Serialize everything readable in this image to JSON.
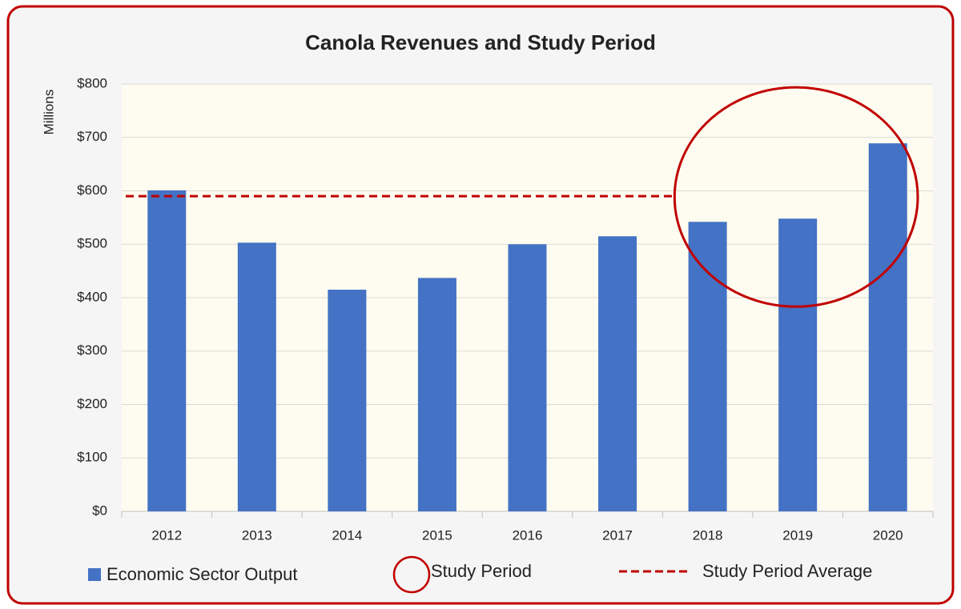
{
  "chart_data": {
    "type": "bar",
    "title": "Canola Revenues and Study Period",
    "y_label": "Millions",
    "categories": [
      "2012",
      "2013",
      "2014",
      "2015",
      "2016",
      "2017",
      "2018",
      "2019",
      "2020"
    ],
    "series": [
      {
        "name": "Economic Sector Output",
        "color": "#4472c4",
        "values": [
          601,
          503,
          415,
          437,
          500,
          515,
          542,
          548,
          689
        ]
      }
    ],
    "average_line": {
      "name": "Study Period Average",
      "value": 590,
      "color": "#c00000"
    },
    "highlight": {
      "name": "Study Period",
      "start": "2018",
      "end": "2020",
      "color": "#c00000"
    },
    "ylim": [
      0,
      800
    ],
    "yticks": [
      {
        "value": 0,
        "label": "$0"
      },
      {
        "value": 100,
        "label": "$100"
      },
      {
        "value": 200,
        "label": "$200"
      },
      {
        "value": 300,
        "label": "$300"
      },
      {
        "value": 400,
        "label": "$400"
      },
      {
        "value": 500,
        "label": "$500"
      },
      {
        "value": 600,
        "label": "$600"
      },
      {
        "value": 700,
        "label": "$700"
      },
      {
        "value": 800,
        "label": "$800"
      }
    ],
    "grid": true
  }
}
